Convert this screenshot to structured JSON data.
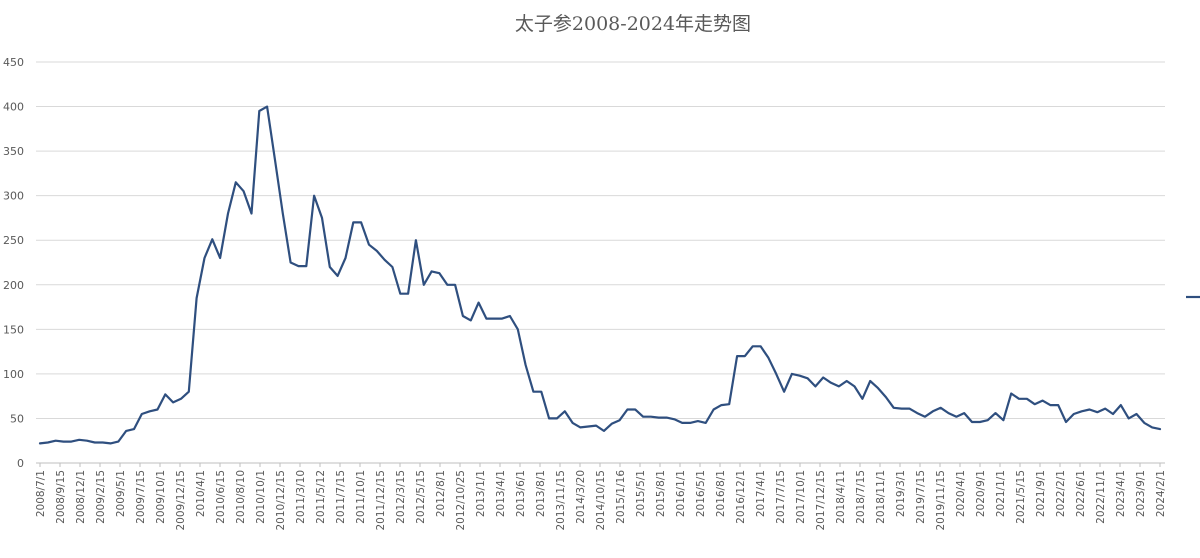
{
  "chart_data": {
    "type": "line",
    "title": "太子参2008-2024年走势图",
    "xlabel": "",
    "ylabel": "",
    "ylim": [
      0,
      450
    ],
    "yticks": [
      0,
      50,
      100,
      150,
      200,
      250,
      300,
      350,
      400,
      450
    ],
    "grid": true,
    "legend": "right",
    "series_color": "#2f4f7f",
    "x_tick_labels": [
      "2008/7/1",
      "2008/9/15",
      "2008/12/1",
      "2009/2/15",
      "2009/5/1",
      "2009/7/15",
      "2009/10/1",
      "2009/12/15",
      "2010/4/1",
      "2010/6/15",
      "2010/8/10",
      "2010/10/1",
      "2010/12/15",
      "2011/3/10",
      "2011/5/12",
      "2011/7/15",
      "2011/10/1",
      "2011/12/15",
      "2012/3/15",
      "2012/5/15",
      "2012/8/1",
      "2012/10/25",
      "2013/1/1",
      "2013/4/1",
      "2013/6/1",
      "2013/8/1",
      "2013/11/15",
      "2014/3/20",
      "2014/10/15",
      "2015/1/16",
      "2015/5/1",
      "2015/8/1",
      "2016/1/1",
      "2016/5/1",
      "2016/8/1",
      "2016/12/1",
      "2017/4/1",
      "2017/7/15",
      "2017/10/1",
      "2017/12/15",
      "2018/4/11",
      "2018/7/15",
      "2018/11/1",
      "2019/3/1",
      "2019/7/15",
      "2019/11/15",
      "2020/4/1",
      "2020/9/1",
      "2021/1/1",
      "2021/5/15",
      "2021/9/1",
      "2022/2/1",
      "2022/6/1",
      "2022/11/1",
      "2023/4/1",
      "2023/9/1",
      "2024/2/1"
    ],
    "series": [
      {
        "values": [
          22,
          23,
          25,
          24,
          24,
          26,
          25,
          23,
          23,
          22,
          24,
          36,
          38,
          55,
          58,
          60,
          77,
          68,
          72,
          80,
          185,
          230,
          251,
          230,
          280,
          315,
          305,
          280,
          395,
          400,
          340,
          280,
          225,
          221,
          221,
          300,
          275,
          220,
          210,
          230,
          270,
          270,
          245,
          238,
          228,
          220,
          190,
          190,
          250,
          200,
          215,
          213,
          200,
          200,
          165,
          160,
          180,
          162,
          162,
          162,
          165,
          150,
          110,
          80,
          80,
          50,
          50,
          58,
          45,
          40,
          41,
          42,
          36,
          44,
          48,
          60,
          60,
          52,
          52,
          51,
          51,
          49,
          45,
          45,
          47,
          45,
          60,
          65,
          66,
          120,
          120,
          131,
          131,
          118,
          100,
          80,
          100,
          98,
          95,
          86,
          96,
          90,
          86,
          92,
          86,
          72,
          92,
          84,
          74,
          62,
          61,
          61,
          56,
          52,
          58,
          62,
          56,
          52,
          56,
          46,
          46,
          48,
          56,
          48,
          78,
          72,
          72,
          66,
          70,
          65,
          65,
          46,
          55,
          58,
          60,
          57,
          61,
          55,
          65,
          50,
          55,
          45,
          40,
          38
        ]
      }
    ]
  }
}
